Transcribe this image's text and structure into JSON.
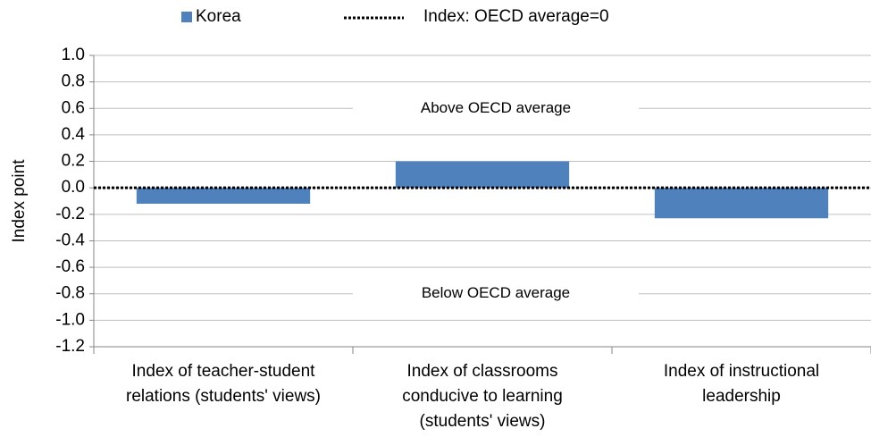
{
  "chart_data": {
    "type": "bar",
    "y_axis_label": "Index point",
    "categories": [
      [
        "Index of teacher-student",
        "relations (students' views)"
      ],
      [
        "Index of classrooms",
        "conducive to learning",
        "(students' views)"
      ],
      [
        "Index of instructional",
        "leadership"
      ]
    ],
    "series": [
      {
        "name": "Korea",
        "color": "#4f81bd",
        "values": [
          -0.12,
          0.2,
          -0.23
        ]
      }
    ],
    "reference_line": {
      "name": "Index: OECD average=0",
      "value": 0,
      "color": "#000000"
    },
    "annotations": [
      {
        "text": "Above OECD average",
        "value": 0.6
      },
      {
        "text": "Below OECD average",
        "value": -0.8
      }
    ],
    "ylim": [
      -1.2,
      1.0
    ],
    "yticks": [
      {
        "value": 1.0,
        "label": "1.0"
      },
      0.8,
      0.6,
      0.4,
      0.2,
      {
        "value": 0,
        "label": "0.0"
      },
      -0.2,
      -0.4,
      -0.6,
      -0.8,
      {
        "value": -1.0,
        "label": "-1.0"
      },
      -1.2
    ],
    "grid": true
  }
}
